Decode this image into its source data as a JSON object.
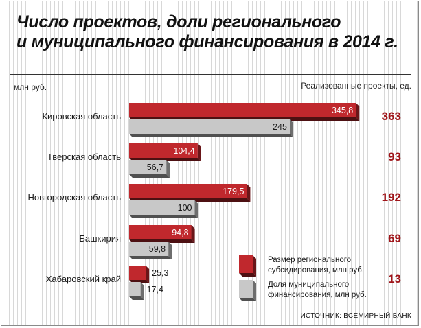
{
  "title_line1": "Число проектов, доли регионального",
  "title_line2": "и муниципального финансирования в 2014 г.",
  "unit_label": "млн руб.",
  "count_header": "Реализованные проекты, ед.",
  "legend": {
    "regional": "Размер регионального субсидирования, млн руб.",
    "municipal": "Доля муниципального финансирования, млн руб."
  },
  "source": "ИСТОЧНИК: ВСЕМИРНЫЙ БАНК",
  "colors": {
    "regional": "#c0282d",
    "municipal": "#c8c8c8",
    "count": "#a0151a"
  },
  "chart_data": {
    "type": "bar",
    "orientation": "horizontal",
    "categories": [
      "Кировская область",
      "Тверская область",
      "Новгородская область",
      "Башкирия",
      "Хабаровский край"
    ],
    "series": [
      {
        "name": "Размер регионального субсидирования, млн руб.",
        "values": [
          345.8,
          104.4,
          179.5,
          94.8,
          25.3
        ],
        "labels": [
          "345,8",
          "104,4",
          "179,5",
          "94,8",
          "25,3"
        ]
      },
      {
        "name": "Доля муниципального финансирования, млн руб.",
        "values": [
          245,
          56.7,
          100,
          59.8,
          17.4
        ],
        "labels": [
          "245",
          "56,7",
          "100",
          "59,8",
          "17,4"
        ]
      }
    ],
    "projects": [
      363,
      93,
      192,
      69,
      13
    ],
    "xlabel": "млн руб.",
    "legend_position": "bottom-right",
    "grid": false
  }
}
